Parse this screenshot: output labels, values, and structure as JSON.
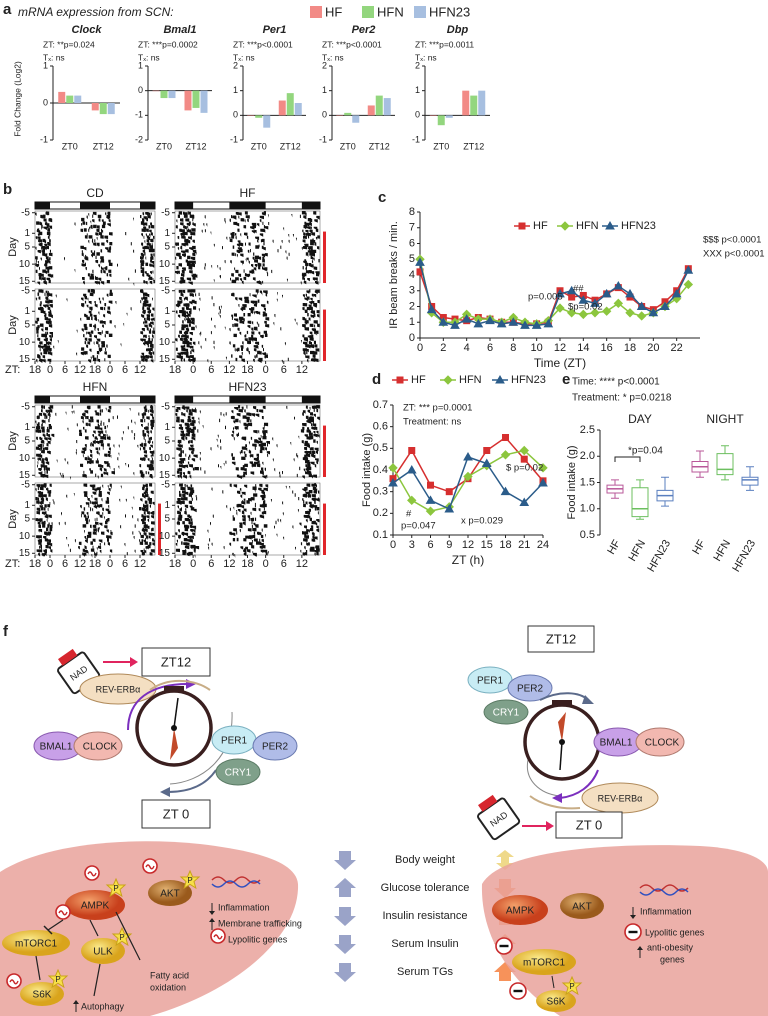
{
  "panel_labels": [
    "a",
    "b",
    "c",
    "d",
    "e",
    "f"
  ],
  "heading": "mRNA expression from SCN:",
  "chart_data": [
    {
      "type": "bar",
      "title": "Clock",
      "stats": [
        "ZT: **p=0.024",
        "Tₓ: ns"
      ],
      "ylabel": "Fold Change (Log2)",
      "categories": [
        "ZT0",
        "ZT12"
      ],
      "ylim": [
        -1,
        1
      ],
      "yticks": [
        -1,
        0,
        1
      ],
      "series": [
        {
          "name": "HF",
          "color": "#f28a86",
          "values": [
            0.3,
            -0.2
          ]
        },
        {
          "name": "HFN",
          "color": "#93d67e",
          "values": [
            0.2,
            -0.3
          ]
        },
        {
          "name": "HFN23",
          "color": "#a7bfe0",
          "values": [
            0.2,
            -0.3
          ]
        }
      ]
    },
    {
      "type": "bar",
      "title": "Bmal1",
      "stats": [
        "ZT: ***p=0.0002",
        "Tₓ: ns"
      ],
      "categories": [
        "ZT0",
        "ZT12"
      ],
      "ylim": [
        -2,
        1
      ],
      "yticks": [
        -2,
        -1,
        0,
        1
      ],
      "series": [
        {
          "color": "#f28a86",
          "values": [
            0.0,
            -0.8
          ]
        },
        {
          "color": "#93d67e",
          "values": [
            -0.3,
            -0.7
          ]
        },
        {
          "color": "#a7bfe0",
          "values": [
            -0.3,
            -0.9
          ]
        }
      ]
    },
    {
      "type": "bar",
      "title": "Per1",
      "stats": [
        "ZT: ***p<0.0001",
        "Tₓ: ns"
      ],
      "categories": [
        "ZT0",
        "ZT12"
      ],
      "ylim": [
        -1,
        2
      ],
      "yticks": [
        -1,
        0,
        1,
        2
      ],
      "series": [
        {
          "color": "#f28a86",
          "values": [
            0.0,
            0.6
          ]
        },
        {
          "color": "#93d67e",
          "values": [
            -0.1,
            0.9
          ]
        },
        {
          "color": "#a7bfe0",
          "values": [
            -0.5,
            0.5
          ]
        }
      ]
    },
    {
      "type": "bar",
      "title": "Per2",
      "stats": [
        "ZT: ***p<0.0001",
        "Tₓ: ns"
      ],
      "categories": [
        "ZT0",
        "ZT12"
      ],
      "ylim": [
        -1,
        2
      ],
      "yticks": [
        -1,
        0,
        1,
        2
      ],
      "series": [
        {
          "color": "#f28a86",
          "values": [
            0.0,
            0.4
          ]
        },
        {
          "color": "#93d67e",
          "values": [
            0.1,
            0.8
          ]
        },
        {
          "color": "#a7bfe0",
          "values": [
            -0.3,
            0.7
          ]
        }
      ]
    },
    {
      "type": "bar",
      "title": "Dbp",
      "stats": [
        "ZT: ***p=0.0011",
        "Tₓ: ns"
      ],
      "categories": [
        "ZT0",
        "ZT12"
      ],
      "ylim": [
        -1,
        2
      ],
      "yticks": [
        -1,
        0,
        1,
        2
      ],
      "series": [
        {
          "color": "#f28a86",
          "values": [
            0.0,
            1.0
          ]
        },
        {
          "color": "#93d67e",
          "values": [
            -0.4,
            0.8
          ]
        },
        {
          "color": "#a7bfe0",
          "values": [
            -0.1,
            1.0
          ]
        }
      ]
    },
    {
      "type": "line",
      "xlabel": "Time (ZT)",
      "ylabel": "IR beam breaks / min.",
      "x": [
        0,
        1,
        2,
        3,
        4,
        5,
        6,
        7,
        8,
        9,
        10,
        11,
        12,
        13,
        14,
        15,
        16,
        17,
        18,
        19,
        20,
        21,
        22,
        23
      ],
      "xlim": [
        0,
        24
      ],
      "xticks": [
        0,
        2,
        4,
        6,
        8,
        10,
        12,
        14,
        16,
        18,
        20,
        22
      ],
      "ylim": [
        0,
        8
      ],
      "yticks": [
        0,
        1,
        2,
        3,
        4,
        5,
        6,
        7,
        8
      ],
      "annotations": [
        "p=0.005",
        "##",
        "$p=0.02",
        "$$$ p<0.0001",
        "XXX p<0.0001"
      ],
      "series": [
        {
          "name": "HF",
          "color": "#d62f2f",
          "marker": "square",
          "values": [
            4.2,
            2.0,
            1.3,
            1.2,
            1.1,
            1.3,
            1.2,
            1.0,
            1.0,
            0.9,
            0.9,
            1.0,
            3.0,
            2.6,
            2.7,
            2.4,
            2.8,
            3.2,
            2.6,
            2.0,
            1.8,
            2.3,
            3.0,
            4.4
          ]
        },
        {
          "name": "HFN",
          "color": "#8cc63e",
          "marker": "diamond",
          "values": [
            5.0,
            1.6,
            1.0,
            1.0,
            1.5,
            1.2,
            1.2,
            1.0,
            1.3,
            1.0,
            0.9,
            1.1,
            1.9,
            1.6,
            1.5,
            1.6,
            1.7,
            2.2,
            1.6,
            1.4,
            1.6,
            2.0,
            2.5,
            3.4
          ]
        },
        {
          "name": "HFN23",
          "color": "#2b5c8a",
          "marker": "triangle",
          "values": [
            4.8,
            1.8,
            1.0,
            0.8,
            1.2,
            0.9,
            1.1,
            0.9,
            1.0,
            0.8,
            0.8,
            0.9,
            2.8,
            3.0,
            2.4,
            2.2,
            2.8,
            3.3,
            2.8,
            2.0,
            1.6,
            2.0,
            2.8,
            4.3
          ]
        }
      ]
    },
    {
      "type": "line",
      "xlabel": "ZT (h)",
      "ylabel": "Food intake (g)",
      "x": [
        0,
        3,
        6,
        9,
        12,
        15,
        18,
        21,
        24
      ],
      "xlim": [
        0,
        24
      ],
      "xticks": [
        0,
        3,
        6,
        9,
        12,
        15,
        18,
        21,
        24
      ],
      "ylim": [
        0.1,
        0.7
      ],
      "yticks": [
        0.1,
        0.2,
        0.3,
        0.4,
        0.5,
        0.6,
        0.7
      ],
      "annotations": [
        "ZT: *** p=0.0001",
        "Treatment: ns",
        "$ p=0.02",
        "x p=0.029",
        "#",
        "p=0.047"
      ],
      "series": [
        {
          "name": "HF",
          "color": "#d62f2f",
          "marker": "square",
          "values": [
            0.36,
            0.49,
            0.33,
            0.3,
            0.36,
            0.49,
            0.55,
            0.45,
            0.35
          ]
        },
        {
          "name": "HFN",
          "color": "#8cc63e",
          "marker": "diamond",
          "values": [
            0.41,
            0.26,
            0.21,
            0.23,
            0.37,
            0.42,
            0.47,
            0.49,
            0.41
          ]
        },
        {
          "name": "HFN23",
          "color": "#2b5c8a",
          "marker": "triangle",
          "values": [
            0.34,
            0.4,
            0.26,
            0.22,
            0.46,
            0.43,
            0.3,
            0.25,
            0.34
          ]
        }
      ]
    },
    {
      "type": "box",
      "ylabel": "Food intake (g)",
      "groups": [
        "DAY",
        "NIGHT"
      ],
      "categories": [
        "HF",
        "HFN",
        "HFN23",
        "HF",
        "HFN",
        "HFN23"
      ],
      "colors": [
        "#b9589a",
        "#6cbf5f",
        "#5a7fbf",
        "#b9589a",
        "#6cbf5f",
        "#5a7fbf"
      ],
      "ylim": [
        0.5,
        2.5
      ],
      "yticks": [
        0.5,
        {
          "value": 1.0,
          "label": "1.0"
        },
        1.5,
        {
          "value": 2.0,
          "label": "2.0"
        },
        2.5
      ],
      "annotations": [
        "Time: **** p<0.0001",
        "Treatment: * p=0.0218",
        "*p=0.04"
      ],
      "boxes": [
        {
          "min": 1.2,
          "q1": 1.3,
          "median": 1.38,
          "q3": 1.45,
          "max": 1.55
        },
        {
          "min": 0.8,
          "q1": 0.85,
          "median": 1.0,
          "q3": 1.4,
          "max": 1.55
        },
        {
          "min": 1.05,
          "q1": 1.15,
          "median": 1.25,
          "q3": 1.35,
          "max": 1.6
        },
        {
          "min": 1.6,
          "q1": 1.7,
          "median": 1.8,
          "q3": 1.9,
          "max": 2.1
        },
        {
          "min": 1.55,
          "q1": 1.65,
          "median": 1.75,
          "q3": 2.05,
          "max": 2.2
        },
        {
          "min": 1.35,
          "q1": 1.45,
          "median": 1.55,
          "q3": 1.6,
          "max": 1.8
        }
      ]
    }
  ],
  "actograms": {
    "groups": [
      "CD",
      "HF",
      "HFN",
      "HFN23"
    ],
    "day_label": "Day",
    "zt_label": "ZT:",
    "day_ticks": [
      -5,
      1,
      5,
      10,
      15
    ],
    "zt_ticks": [
      18,
      0,
      6,
      12,
      18,
      0,
      6,
      12
    ]
  },
  "diagram": {
    "left_clock": {
      "zt_top": "ZT12",
      "zt_bottom": "ZT 0",
      "nad": "NAD",
      "rev": "REV-ERBα",
      "bmal1": "BMAL1",
      "clock": "CLOCK",
      "per1": "PER1",
      "per2": "PER2",
      "cry1": "CRY1"
    },
    "right_clock": {
      "zt_top": "ZT12",
      "zt_bottom": "ZT 0",
      "nad": "NAD",
      "rev": "REV-ERBα",
      "bmal1": "BMAL1",
      "clock": "CLOCK",
      "per1": "PER1",
      "per2": "PER2",
      "cry1": "CRY1"
    },
    "left_liver": {
      "ampk": "AMPK",
      "akt": "AKT",
      "mtorc1": "mTORC1",
      "ulk": "ULK",
      "s6k": "S6K",
      "p": "P",
      "effects": [
        "Inflammation",
        "Membrane trafficking",
        "Lypolitic genes"
      ],
      "fatty": [
        "Fatty acid",
        "oxidation"
      ],
      "autophagy": "Autophagy"
    },
    "outcomes": [
      "Body weight",
      "Glucose tolerance",
      "Insulin resistance",
      "Serum Insulin",
      "Serum TGs"
    ],
    "right_liver": {
      "ampk": "AMPK",
      "akt": "AKT",
      "mtorc1": "mTORC1",
      "s6k": "S6K",
      "p": "P",
      "effects": [
        "Inflammation",
        "Lypolitic genes"
      ],
      "anti": [
        "anti-obesity",
        "genes"
      ]
    }
  }
}
